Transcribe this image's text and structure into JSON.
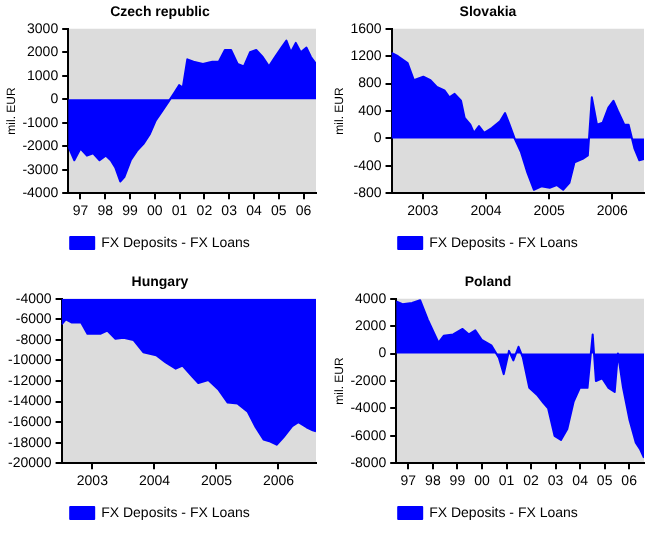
{
  "chart_data": [
    {
      "type": "area",
      "title": "Czech republic",
      "ylabel": "mil. EUR",
      "legend": "bottom",
      "xlim": [
        "1997-01-01",
        "2007-01-01"
      ],
      "xticks": [
        {
          "value": "1997-07-01",
          "label": "97"
        },
        {
          "value": "1998-07-01",
          "label": "98"
        },
        {
          "value": "1999-07-01",
          "label": "99"
        },
        {
          "value": "2000-07-01",
          "label": "00"
        },
        {
          "value": "2001-07-01",
          "label": "01"
        },
        {
          "value": "2002-07-01",
          "label": "02"
        },
        {
          "value": "2003-07-01",
          "label": "03"
        },
        {
          "value": "2004-07-01",
          "label": "04"
        },
        {
          "value": "2005-07-01",
          "label": "05"
        },
        {
          "value": "2006-07-01",
          "label": "06"
        }
      ],
      "ylim": [
        -4000,
        3000
      ],
      "yticks": [
        -4000,
        -3000,
        -2000,
        -1000,
        0,
        1000,
        2000,
        3000
      ],
      "x": [
        "1997-01-01",
        "1997-04-01",
        "1997-07-01",
        "1997-10-04",
        "1998-01-04",
        "1998-04-08",
        "1998-07-08",
        "1998-09-20",
        "1998-11-25",
        "1999-02-07",
        "1999-04-11",
        "1999-07-11",
        "1999-10-11",
        "2000-01-15",
        "2000-04-15",
        "2000-07-15",
        "2000-10-19",
        "2001-01-19",
        "2001-04-19",
        "2001-06-23",
        "2001-08-17",
        "2001-10-22",
        "2002-01-22",
        "2002-06-09",
        "2002-10-26",
        "2003-01-29",
        "2003-04-29",
        "2003-07-29",
        "2003-11-03",
        "2004-02-03",
        "2004-05-03",
        "2004-08-03",
        "2004-11-07",
        "2005-02-07",
        "2005-05-07",
        "2005-08-10",
        "2005-10-22",
        "2005-12-27",
        "2006-03-09",
        "2006-05-21",
        "2006-08-14",
        "2006-10-19",
        "2007-01-01"
      ],
      "series": [
        {
          "name": "FX Deposits - FX Loans",
          "color": "#0000ff",
          "values": [
            -2000,
            -2600,
            -2100,
            -2400,
            -2300,
            -2600,
            -2400,
            -2600,
            -2900,
            -3500,
            -3300,
            -2600,
            -2200,
            -1900,
            -1500,
            -900,
            -500,
            -100,
            300,
            600,
            500,
            1700,
            1600,
            1500,
            1600,
            1600,
            2100,
            2100,
            1500,
            1400,
            2000,
            2100,
            1800,
            1400,
            1800,
            2200,
            2500,
            2000,
            2400,
            2000,
            2200,
            1800,
            1500
          ]
        }
      ]
    },
    {
      "type": "area",
      "title": "Slovakia",
      "ylabel": "mil. EUR",
      "legend": "bottom",
      "xlim": [
        "2003-01-01",
        "2007-01-01"
      ],
      "xticks": [
        {
          "value": "2003-07-01",
          "label": "2003"
        },
        {
          "value": "2004-07-01",
          "label": "2004"
        },
        {
          "value": "2005-07-01",
          "label": "2005"
        },
        {
          "value": "2006-07-01",
          "label": "2006"
        }
      ],
      "ylim": [
        -800,
        1600
      ],
      "yticks": [
        -800,
        -400,
        0,
        400,
        800,
        1200,
        1600
      ],
      "x": [
        "2003-01-01",
        "2003-02-07",
        "2003-04-04",
        "2003-05-10",
        "2003-07-04",
        "2003-08-14",
        "2003-09-20",
        "2003-11-03",
        "2003-12-02",
        "2004-01-01",
        "2004-02-07",
        "2004-02-28",
        "2004-04-01",
        "2004-04-22",
        "2004-05-21",
        "2004-06-20",
        "2004-08-03",
        "2004-09-20",
        "2004-10-19",
        "2004-11-14",
        "2004-12-13",
        "2005-01-19",
        "2005-02-25",
        "2005-04-04",
        "2005-05-17",
        "2005-07-04",
        "2005-08-14",
        "2005-09-20",
        "2005-10-26",
        "2005-11-25",
        "2006-01-11",
        "2006-02-10",
        "2006-03-05",
        "2006-04-04",
        "2006-05-07",
        "2006-06-09",
        "2006-07-08",
        "2006-08-03",
        "2006-09-09",
        "2006-10-04",
        "2006-11-07",
        "2006-12-05",
        "2007-01-01"
      ],
      "series": [
        {
          "name": "FX Deposits - FX Loans",
          "color": "#0000ff",
          "values": [
            1250,
            1200,
            1100,
            850,
            900,
            850,
            750,
            700,
            600,
            650,
            550,
            300,
            200,
            80,
            180,
            80,
            150,
            250,
            370,
            200,
            0,
            -200,
            -500,
            -750,
            -700,
            -720,
            -680,
            -750,
            -650,
            -350,
            -300,
            -250,
            600,
            200,
            230,
            450,
            550,
            400,
            200,
            200,
            -150,
            -320,
            -300
          ]
        }
      ]
    },
    {
      "type": "area",
      "title": "Hungary",
      "legend": "bottom",
      "xlim": [
        "2003-01-01",
        "2007-02-07"
      ],
      "xticks": [
        {
          "value": "2003-07-01",
          "label": "2003"
        },
        {
          "value": "2004-07-01",
          "label": "2004"
        },
        {
          "value": "2005-07-01",
          "label": "2005"
        },
        {
          "value": "2006-07-01",
          "label": "2006"
        }
      ],
      "ylim": [
        -20000,
        -4000
      ],
      "yticks": [
        -20000,
        -18000,
        -16000,
        -14000,
        -12000,
        -10000,
        -8000,
        -6000,
        -4000
      ],
      "x": [
        "2003-01-01",
        "2003-01-26",
        "2003-02-28",
        "2003-04-26",
        "2003-06-02",
        "2003-08-17",
        "2003-09-27",
        "2003-11-14",
        "2004-01-01",
        "2004-02-28",
        "2004-04-26",
        "2004-07-11",
        "2004-09-05",
        "2004-11-03",
        "2004-12-13",
        "2005-02-10",
        "2005-03-16",
        "2005-05-14",
        "2005-07-11",
        "2005-09-05",
        "2005-11-03",
        "2006-01-01",
        "2006-02-17",
        "2006-04-04",
        "2006-05-14",
        "2006-06-20",
        "2006-07-29",
        "2006-09-20",
        "2006-10-26",
        "2006-12-13",
        "2007-01-19",
        "2007-02-07"
      ],
      "series": [
        {
          "name": "FX Deposits - FX Loans",
          "color": "#0000ff",
          "values": [
            -6500,
            -6000,
            -6300,
            -6300,
            -7400,
            -7400,
            -7100,
            -7900,
            -7800,
            -8000,
            -9200,
            -9500,
            -10200,
            -10800,
            -10500,
            -11600,
            -12200,
            -11900,
            -12800,
            -14100,
            -14200,
            -15000,
            -16500,
            -17700,
            -17900,
            -18200,
            -17500,
            -16400,
            -16000,
            -16500,
            -16800,
            -16900
          ]
        }
      ]
    },
    {
      "type": "area",
      "title": "Poland",
      "ylabel": "mil. EUR",
      "legend": "bottom",
      "xlim": [
        "1997-01-01",
        "2007-02-07"
      ],
      "xticks": [
        {
          "value": "1997-07-01",
          "label": "97"
        },
        {
          "value": "1998-07-01",
          "label": "98"
        },
        {
          "value": "1999-07-01",
          "label": "99"
        },
        {
          "value": "2000-07-01",
          "label": "00"
        },
        {
          "value": "2001-07-01",
          "label": "01"
        },
        {
          "value": "2002-07-01",
          "label": "02"
        },
        {
          "value": "2003-07-01",
          "label": "03"
        },
        {
          "value": "2004-07-01",
          "label": "04"
        },
        {
          "value": "2005-07-01",
          "label": "05"
        },
        {
          "value": "2006-07-01",
          "label": "06"
        }
      ],
      "ylim": [
        -8000,
        4000
      ],
      "yticks": [
        -8000,
        -6000,
        -4000,
        -2000,
        0,
        2000,
        4000
      ],
      "x": [
        "1997-01-01",
        "1997-04-04",
        "1997-08-25",
        "1997-12-23",
        "1998-04-15",
        "1998-07-19",
        "1998-09-23",
        "1998-12-09",
        "1999-04-29",
        "1999-09-16",
        "1999-12-20",
        "2000-03-23",
        "2000-06-27",
        "2000-11-17",
        "2001-03-09",
        "2001-05-21",
        "2001-08-07",
        "2001-10-11",
        "2001-12-27",
        "2002-03-02",
        "2002-06-05",
        "2002-09-27",
        "2003-01-01",
        "2003-03-13",
        "2003-06-16",
        "2003-09-20",
        "2003-12-23",
        "2004-03-27",
        "2004-06-27",
        "2004-10-19",
        "2005-01-04",
        "2005-02-21",
        "2005-05-25",
        "2005-08-28",
        "2005-11-28",
        "2006-01-15",
        "2006-04-01",
        "2006-07-04",
        "2006-10-08",
        "2006-12-13",
        "2007-02-07"
      ],
      "series": [
        {
          "name": "FX Deposits - FX Loans",
          "color": "#0000ff",
          "values": [
            3800,
            3600,
            3700,
            3900,
            2500,
            1500,
            800,
            1300,
            1400,
            1800,
            1400,
            1700,
            1000,
            600,
            -300,
            -1500,
            200,
            -500,
            500,
            -300,
            -2500,
            -3000,
            -3600,
            -4000,
            -6000,
            -6300,
            -5500,
            -3500,
            -2500,
            -2500,
            1400,
            -2000,
            -1800,
            -2500,
            -2800,
            0,
            -2500,
            -4800,
            -6500,
            -7000,
            -7600
          ]
        }
      ]
    }
  ]
}
